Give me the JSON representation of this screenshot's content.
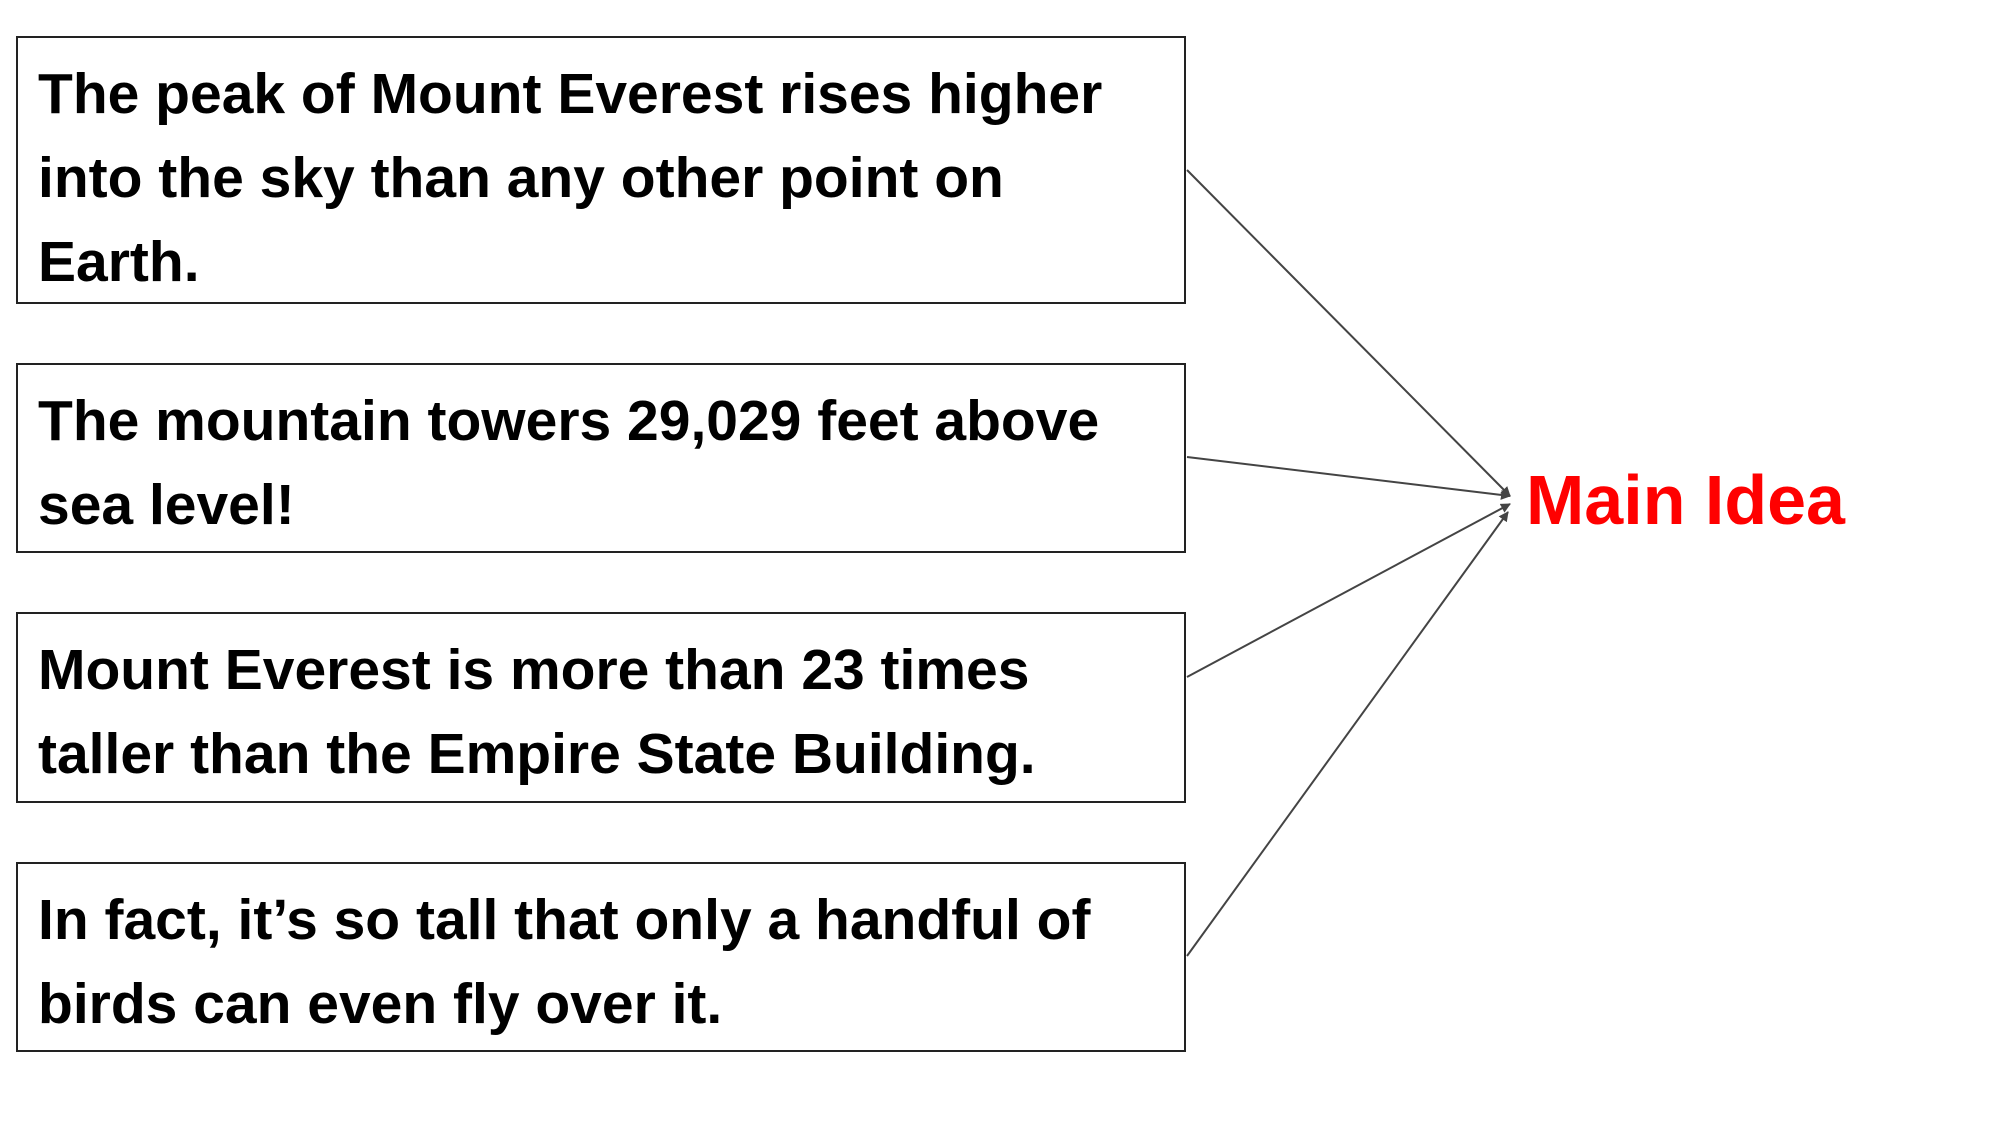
{
  "supporting_details": [
    {
      "text": "The peak of Mount Everest rises higher into the sky than any other point on Earth."
    },
    {
      "text": "The mountain towers 29,029 feet above sea level!"
    },
    {
      "text": "Mount Everest is more than 23 times taller than the Empire State Building."
    },
    {
      "text": "In fact, it’s so tall that only a handful of birds can even fly over it."
    }
  ],
  "main_idea": {
    "label": "Main Idea"
  },
  "colors": {
    "main_idea": "#ff0000",
    "box_border": "#222222",
    "arrow": "#444444"
  }
}
